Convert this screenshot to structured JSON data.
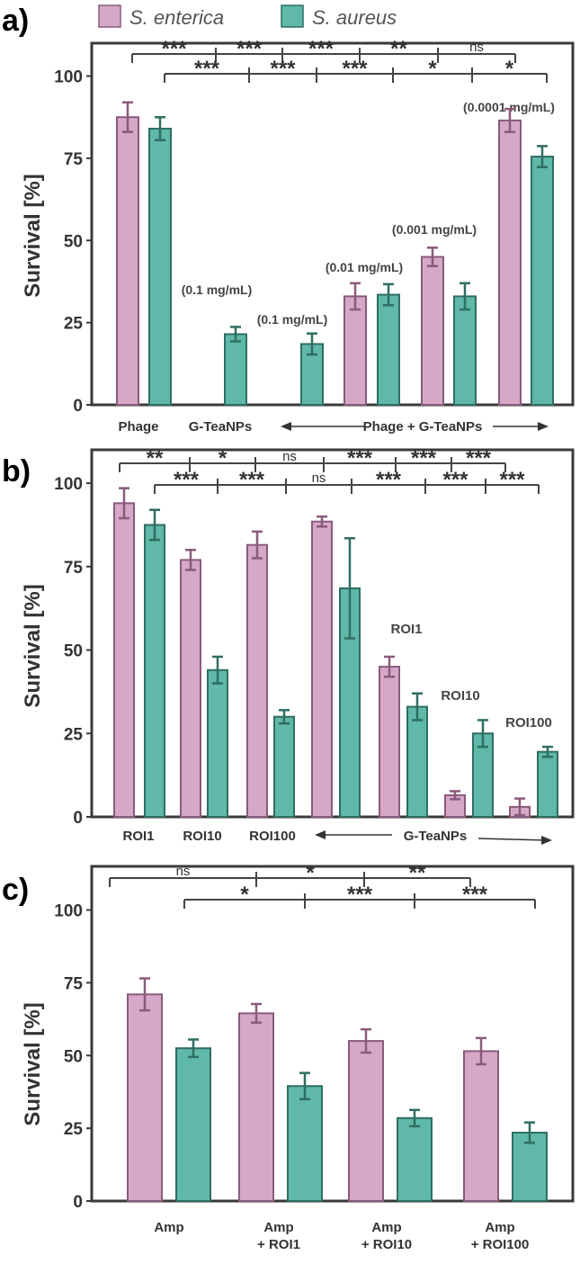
{
  "legend": {
    "series": [
      {
        "name": "S. enterica",
        "color": "#d6a8c8",
        "edge": "#8a5a7c"
      },
      {
        "name": "S. aureus",
        "color": "#5fb8a8",
        "edge": "#2f6e62"
      }
    ]
  },
  "colors": {
    "axis": "#3a3a3a",
    "text": "#333333",
    "bracket": "#444444"
  },
  "chart_data": [
    {
      "panel_label": "a)",
      "type": "bar",
      "ylabel": "Survival [%]",
      "ylim": [
        0,
        110
      ],
      "yticks": [
        0,
        25,
        50,
        75,
        100
      ],
      "bars": [
        {
          "series": "S. enterica",
          "value": 87.5,
          "err": 4.5
        },
        {
          "series": "S. aureus",
          "value": 84,
          "err": 3.5
        },
        {
          "series": "S. aureus",
          "value": 21.5,
          "err": 2.2
        },
        {
          "series": "S. aureus",
          "value": 18.5,
          "err": 3.2
        },
        {
          "series": "S. enterica",
          "value": 33,
          "err": 4
        },
        {
          "series": "S. aureus",
          "value": 33.5,
          "err": 3.2
        },
        {
          "series": "S. enterica",
          "value": 45,
          "err": 2.8
        },
        {
          "series": "S. aureus",
          "value": 33,
          "err": 4
        },
        {
          "series": "S. enterica",
          "value": 86.5,
          "err": 3.5
        },
        {
          "series": "S. aureus",
          "value": 75.5,
          "err": 3.2
        }
      ],
      "annotations": [
        "(0.1 mg/mL)",
        "(0.1 mg/mL)",
        "(0.01 mg/mL)",
        "(0.001 mg/mL)",
        "(0.0001 mg/mL)"
      ],
      "category_labels": [
        "Phage",
        "G-TeaNPs",
        "Phage + G-TeaNPs"
      ],
      "significance_top": [
        "***",
        "***",
        "***",
        "**",
        "ns"
      ],
      "significance_bottom": [
        "***",
        "***",
        "***",
        "*",
        "*"
      ]
    },
    {
      "panel_label": "b)",
      "type": "bar",
      "ylabel": "Survival [%]",
      "ylim": [
        0,
        110
      ],
      "yticks": [
        0,
        25,
        50,
        75,
        100
      ],
      "bars": [
        {
          "series": "S. enterica",
          "value": 94,
          "err": 4.5
        },
        {
          "series": "S. aureus",
          "value": 87.5,
          "err": 4.5
        },
        {
          "series": "S. enterica",
          "value": 77,
          "err": 3
        },
        {
          "series": "S. aureus",
          "value": 44,
          "err": 4
        },
        {
          "series": "S. enterica",
          "value": 81.5,
          "err": 4
        },
        {
          "series": "S. aureus",
          "value": 30,
          "err": 2
        },
        {
          "series": "S. enterica",
          "value": 88.5,
          "err": 1.5
        },
        {
          "series": "S. aureus",
          "value": 68.5,
          "err": 15
        },
        {
          "series": "S. enterica",
          "value": 45,
          "err": 3
        },
        {
          "series": "S. aureus",
          "value": 33,
          "err": 4
        },
        {
          "series": "S. enterica",
          "value": 6.5,
          "err": 1.2
        },
        {
          "series": "S. aureus",
          "value": 25,
          "err": 4
        },
        {
          "series": "S. enterica",
          "value": 3,
          "err": 2.5
        },
        {
          "series": "S. aureus",
          "value": 19.5,
          "err": 1.5
        }
      ],
      "annotations": [
        "ROI1",
        "ROI10",
        "ROI100"
      ],
      "category_labels": [
        "ROI1",
        "ROI10",
        "ROI100",
        "G-TeaNPs"
      ],
      "significance_top": [
        "**",
        "*",
        "ns",
        "***",
        "***",
        "***"
      ],
      "significance_bottom": [
        "***",
        "***",
        "ns",
        "***",
        "***",
        "***"
      ]
    },
    {
      "panel_label": "c)",
      "type": "bar",
      "ylabel": "Survival [%]",
      "ylim": [
        0,
        115
      ],
      "yticks": [
        0,
        25,
        50,
        75,
        100
      ],
      "bars": [
        {
          "series": "S. enterica",
          "value": 71,
          "err": 5.5
        },
        {
          "series": "S. aureus",
          "value": 52.5,
          "err": 3
        },
        {
          "series": "S. enterica",
          "value": 64.5,
          "err": 3.2
        },
        {
          "series": "S. aureus",
          "value": 39.5,
          "err": 4.5
        },
        {
          "series": "S. enterica",
          "value": 55,
          "err": 4
        },
        {
          "series": "S. aureus",
          "value": 28.5,
          "err": 2.8
        },
        {
          "series": "S. enterica",
          "value": 51.5,
          "err": 4.5
        },
        {
          "series": "S. aureus",
          "value": 23.5,
          "err": 3.5
        }
      ],
      "category_labels": [
        "Amp",
        "Amp\n+ ROI1",
        "Amp\n+ ROI10",
        "Amp\n+ ROI100"
      ],
      "significance_top": [
        "ns",
        "*",
        "**"
      ],
      "significance_bottom": [
        "*",
        "***",
        "***"
      ]
    }
  ]
}
